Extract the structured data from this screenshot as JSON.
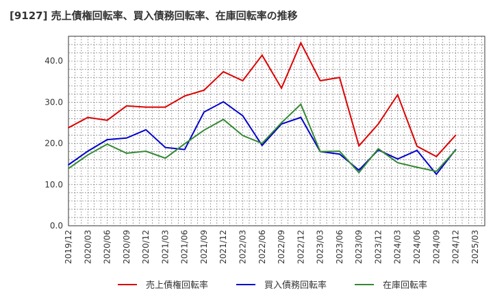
{
  "chart_data": {
    "type": "line",
    "title": "[9127]  売上債権回転率、買入債務回転率、在庫回転率の推移",
    "xlabel": "",
    "ylabel": "",
    "ylim": [
      0,
      46
    ],
    "yticks": [
      0.0,
      10.0,
      20.0,
      30.0,
      40.0
    ],
    "ytick_labels": [
      "0.0",
      "10.0",
      "20.0",
      "30.0",
      "40.0"
    ],
    "grid": true,
    "legend_position": "bottom",
    "x": [
      "2019/12",
      "2020/03",
      "2020/06",
      "2020/09",
      "2020/12",
      "2021/03",
      "2021/06",
      "2021/09",
      "2021/12",
      "2022/03",
      "2022/06",
      "2022/09",
      "2022/12",
      "2023/03",
      "2023/06",
      "2023/09",
      "2023/12",
      "2024/03",
      "2024/06",
      "2024/09",
      "2024/12",
      "2025/03"
    ],
    "series": [
      {
        "name": "売上債権回転率",
        "color": "#dd0000",
        "values": [
          23.8,
          26.3,
          25.6,
          29.1,
          28.8,
          28.8,
          31.5,
          32.9,
          37.4,
          35.2,
          41.4,
          33.4,
          44.4,
          35.2,
          36.0,
          19.4,
          24.7,
          31.8,
          19.3,
          16.8,
          22.0,
          null
        ]
      },
      {
        "name": "買入債務回転率",
        "color": "#0000cc",
        "values": [
          14.8,
          18.1,
          20.9,
          21.3,
          23.3,
          19.0,
          18.5,
          27.6,
          30.1,
          26.7,
          19.5,
          24.7,
          26.3,
          18.0,
          17.4,
          13.5,
          18.4,
          16.2,
          18.3,
          12.5,
          18.5,
          null
        ]
      },
      {
        "name": "在庫回転率",
        "color": "#338833",
        "values": [
          13.9,
          17.2,
          19.8,
          17.6,
          18.1,
          16.4,
          19.9,
          23.2,
          25.8,
          21.9,
          20.0,
          25.0,
          29.5,
          18.0,
          18.1,
          12.9,
          18.7,
          15.3,
          14.2,
          13.2,
          18.4,
          null
        ]
      }
    ]
  }
}
